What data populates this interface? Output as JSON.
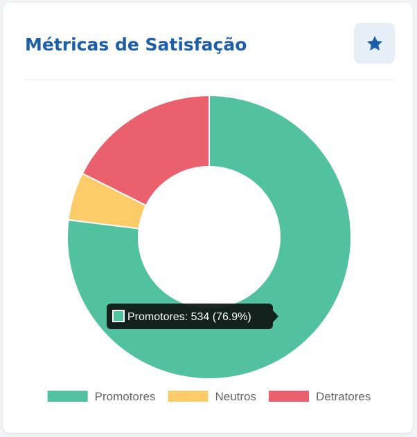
{
  "card": {
    "title": "Métricas de Satisfação",
    "action_icon": "star-icon",
    "accent_color": "#1d5ea8"
  },
  "chart_data": {
    "type": "doughnut",
    "categories": [
      "Promotores",
      "Neutros",
      "Detratores"
    ],
    "values": [
      534,
      38,
      122
    ],
    "colors": [
      "#52c19f",
      "#fccb6a",
      "#ea616d"
    ],
    "legend_position": "bottom",
    "tooltip": "Promotores: 534 (76.9%)"
  }
}
